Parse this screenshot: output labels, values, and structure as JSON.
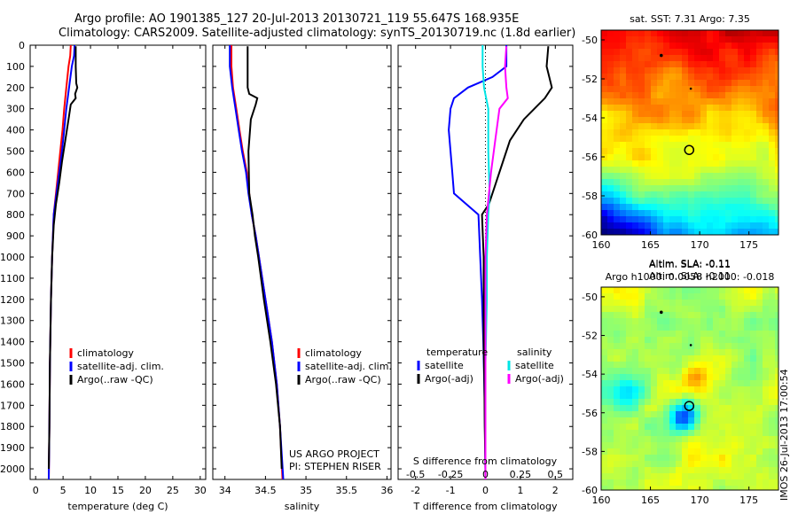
{
  "header": {
    "line1": "Argo profile: AO 1901385_127 20-Jul-2013 20130721_119 55.647S 168.935E",
    "line2": "Climatology: CARS2009. Satellite-adjusted climatology: synTS_20130719.nc (1.8d earlier)"
  },
  "colors": {
    "climatology": "#ff0000",
    "satellite": "#0000ff",
    "argo": "#000000",
    "sat_salinity": "#00e5e5",
    "argo_salinity": "#ff00ff"
  },
  "chart_data": [
    {
      "id": "temperature",
      "type": "line",
      "xlabel": "temperature (deg C)",
      "ylabel": "",
      "xlim": [
        -1,
        31
      ],
      "ylim": [
        2050,
        0
      ],
      "xticks": [
        "0",
        "5",
        "10",
        "15",
        "20",
        "25",
        "30"
      ],
      "yticks": [
        "0",
        "100",
        "200",
        "300",
        "400",
        "500",
        "600",
        "700",
        "800",
        "900",
        "1000",
        "1100",
        "1200",
        "1300",
        "1400",
        "1500",
        "1600",
        "1700",
        "1800",
        "1900",
        "2000"
      ],
      "legend": [
        "climatology",
        "satellite-adj. clim.",
        "Argo(..raw -QC)"
      ],
      "series": [
        {
          "name": "climatology",
          "color": "#ff0000",
          "points": [
            [
              6.4,
              0
            ],
            [
              6.3,
              50
            ],
            [
              6.0,
              100
            ],
            [
              5.6,
              200
            ],
            [
              5.2,
              300
            ],
            [
              4.9,
              400
            ],
            [
              4.5,
              500
            ],
            [
              4.1,
              600
            ],
            [
              3.7,
              700
            ],
            [
              3.3,
              800
            ],
            [
              3.0,
              1000
            ],
            [
              2.8,
              1200
            ],
            [
              2.6,
              1500
            ],
            [
              2.5,
              1800
            ],
            [
              2.4,
              2050
            ]
          ]
        },
        {
          "name": "satellite-adj. clim.",
          "color": "#0000ff",
          "points": [
            [
              7.1,
              0
            ],
            [
              7.0,
              50
            ],
            [
              6.6,
              100
            ],
            [
              6.1,
              200
            ],
            [
              5.6,
              300
            ],
            [
              5.2,
              400
            ],
            [
              4.8,
              500
            ],
            [
              4.3,
              600
            ],
            [
              3.8,
              700
            ],
            [
              3.3,
              800
            ],
            [
              3.0,
              1000
            ],
            [
              2.8,
              1200
            ],
            [
              2.6,
              1500
            ],
            [
              2.5,
              1800
            ],
            [
              2.4,
              2050
            ]
          ]
        },
        {
          "name": "Argo(..raw -QC)",
          "color": "#000000",
          "points": [
            [
              7.3,
              5
            ],
            [
              7.3,
              100
            ],
            [
              7.4,
              180
            ],
            [
              7.6,
              200
            ],
            [
              7.2,
              230
            ],
            [
              7.3,
              250
            ],
            [
              6.4,
              280
            ],
            [
              6.0,
              350
            ],
            [
              5.4,
              450
            ],
            [
              4.8,
              550
            ],
            [
              4.3,
              650
            ],
            [
              3.7,
              750
            ],
            [
              3.3,
              850
            ],
            [
              3.0,
              1000
            ],
            [
              2.8,
              1200
            ],
            [
              2.6,
              1500
            ],
            [
              2.5,
              1800
            ],
            [
              2.4,
              2000
            ]
          ]
        }
      ]
    },
    {
      "id": "salinity",
      "type": "line",
      "xlabel": "salinity",
      "ylabel": "",
      "xlim": [
        33.85,
        36.05
      ],
      "ylim": [
        2050,
        0
      ],
      "xticks": [
        "34",
        "34.5",
        "35",
        "35.5",
        "36"
      ],
      "legend": [
        "climatology",
        "satellite-adj. clim.",
        "Argo(..raw -QC)"
      ],
      "annotations": [
        "US ARGO PROJECT",
        "PI: STEPHEN RISER"
      ],
      "series": [
        {
          "name": "climatology",
          "color": "#ff0000",
          "points": [
            [
              34.08,
              0
            ],
            [
              34.08,
              100
            ],
            [
              34.1,
              200
            ],
            [
              34.14,
              300
            ],
            [
              34.18,
              400
            ],
            [
              34.22,
              500
            ],
            [
              34.27,
              600
            ],
            [
              34.3,
              700
            ],
            [
              34.33,
              800
            ],
            [
              34.38,
              900
            ],
            [
              34.42,
              1000
            ],
            [
              34.5,
              1200
            ],
            [
              34.58,
              1400
            ],
            [
              34.64,
              1600
            ],
            [
              34.68,
              1800
            ],
            [
              34.71,
              2050
            ]
          ]
        },
        {
          "name": "satellite-adj. clim.",
          "color": "#0000ff",
          "points": [
            [
              34.06,
              0
            ],
            [
              34.06,
              100
            ],
            [
              34.09,
              200
            ],
            [
              34.13,
              300
            ],
            [
              34.17,
              400
            ],
            [
              34.21,
              500
            ],
            [
              34.26,
              600
            ],
            [
              34.29,
              700
            ],
            [
              34.33,
              800
            ],
            [
              34.38,
              900
            ],
            [
              34.42,
              1000
            ],
            [
              34.5,
              1200
            ],
            [
              34.58,
              1400
            ],
            [
              34.64,
              1600
            ],
            [
              34.68,
              1800
            ],
            [
              34.72,
              2050
            ]
          ]
        },
        {
          "name": "Argo(..raw -QC)",
          "color": "#000000",
          "points": [
            [
              34.28,
              5
            ],
            [
              34.28,
              200
            ],
            [
              34.3,
              230
            ],
            [
              34.4,
              250
            ],
            [
              34.38,
              280
            ],
            [
              34.32,
              350
            ],
            [
              34.29,
              500
            ],
            [
              34.3,
              700
            ],
            [
              34.34,
              800
            ],
            [
              34.37,
              900
            ],
            [
              34.41,
              1000
            ],
            [
              34.48,
              1200
            ],
            [
              34.56,
              1400
            ],
            [
              34.63,
              1600
            ],
            [
              34.68,
              1800
            ],
            [
              34.7,
              2000
            ]
          ]
        }
      ]
    },
    {
      "id": "difference",
      "type": "line",
      "xlabel": "T difference from climatology",
      "xlabel_top": "S difference from climatology",
      "xlim": [
        -2.5,
        2.5
      ],
      "ylim": [
        2050,
        0
      ],
      "xticks": [
        "-2",
        "-1",
        "0",
        "1",
        "2"
      ],
      "xticks_top": [
        "-0.5",
        "-0.25",
        "0",
        "0.25",
        "0.5"
      ],
      "legend_titles": [
        "temperature",
        "salinity"
      ],
      "legend": [
        "satellite",
        "Argo(-adj)",
        "satellite",
        "Argo(-adj)"
      ],
      "series": [
        {
          "name": "temperature satellite",
          "color": "#0000ff",
          "points": [
            [
              0.6,
              0
            ],
            [
              0.6,
              100
            ],
            [
              0.2,
              150
            ],
            [
              -0.5,
              200
            ],
            [
              -0.9,
              250
            ],
            [
              -1.0,
              300
            ],
            [
              -1.05,
              400
            ],
            [
              -1.0,
              500
            ],
            [
              -0.95,
              600
            ],
            [
              -0.9,
              700
            ],
            [
              -0.2,
              800
            ],
            [
              -0.15,
              1000
            ],
            [
              -0.1,
              1200
            ],
            [
              -0.06,
              1400
            ],
            [
              -0.02,
              1700
            ],
            [
              0.0,
              2050
            ]
          ]
        },
        {
          "name": "temperature Argo(-adj)",
          "color": "#000000",
          "points": [
            [
              1.8,
              5
            ],
            [
              1.75,
              100
            ],
            [
              1.9,
              200
            ],
            [
              1.7,
              250
            ],
            [
              1.1,
              350
            ],
            [
              0.7,
              450
            ],
            [
              0.5,
              550
            ],
            [
              0.3,
              650
            ],
            [
              0.1,
              750
            ],
            [
              -0.1,
              800
            ],
            [
              -0.05,
              1000
            ],
            [
              -0.05,
              1200
            ],
            [
              -0.05,
              1400
            ],
            [
              -0.03,
              1600
            ],
            [
              -0.02,
              1800
            ],
            [
              0.0,
              2000
            ]
          ]
        },
        {
          "name": "salinity satellite",
          "color": "#00e5e5",
          "points": [
            [
              -0.02,
              0
            ],
            [
              -0.02,
              100
            ],
            [
              -0.01,
              200
            ],
            [
              0.02,
              300
            ],
            [
              0.02,
              500
            ],
            [
              0.03,
              700
            ],
            [
              0.02,
              800
            ],
            [
              0.01,
              1000
            ],
            [
              0.01,
              1200
            ],
            [
              0.0,
              1500
            ],
            [
              0.0,
              2050
            ]
          ]
        },
        {
          "name": "salinity Argo(-adj)",
          "color": "#ff00ff",
          "points": [
            [
              0.15,
              5
            ],
            [
              0.14,
              100
            ],
            [
              0.15,
              200
            ],
            [
              0.16,
              250
            ],
            [
              0.1,
              300
            ],
            [
              0.07,
              450
            ],
            [
              0.04,
              600
            ],
            [
              0.01,
              800
            ],
            [
              0.0,
              1000
            ],
            [
              0.0,
              2050
            ]
          ]
        }
      ]
    },
    {
      "id": "sst_map",
      "type": "heatmap",
      "title": "sat. SST: 7.31 Argo: 7.35",
      "xlim": [
        160,
        178
      ],
      "ylim": [
        -60,
        -49.5
      ],
      "xticks": [
        "160",
        "165",
        "170",
        "175"
      ],
      "yticks": [
        "-50",
        "-52",
        "-54",
        "-56",
        "-58",
        "-60"
      ],
      "argo_marker": [
        168.935,
        -55.647
      ]
    },
    {
      "id": "sla_map",
      "type": "heatmap",
      "title": "Altim. SLA: -0.11",
      "subtitle": "Argo h1000: 0.0058 h2000: -0.018",
      "xlim": [
        160,
        178
      ],
      "ylim": [
        -60,
        -49.5
      ],
      "xticks": [
        "160",
        "165",
        "170",
        "175"
      ],
      "yticks": [
        "-50",
        "-52",
        "-54",
        "-56",
        "-58",
        "-60"
      ],
      "argo_marker": [
        168.935,
        -55.647
      ],
      "side_label": "IMOS 26-Jul-2013 17:00:54"
    }
  ]
}
